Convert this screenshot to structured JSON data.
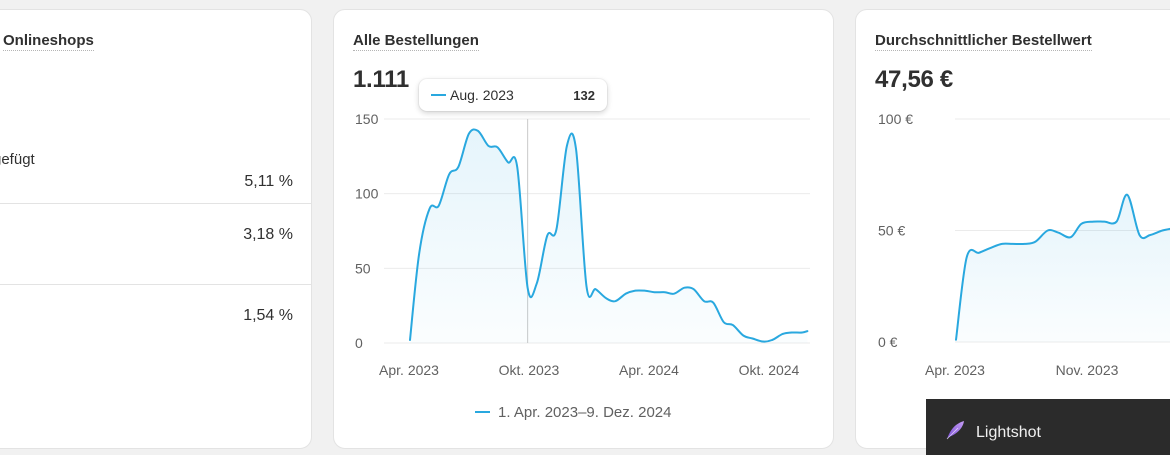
{
  "cards": {
    "online_stores": {
      "title": "Onlineshops",
      "rows": [
        {
          "label": "gefügt",
          "value": "5,11 %"
        },
        {
          "label": "",
          "value": "3,18 %"
        },
        {
          "label": "",
          "value": "1,54 %"
        }
      ]
    },
    "all_orders": {
      "title": "Alle Bestellungen",
      "value": "1.111",
      "tooltip": {
        "label": "Aug. 2023",
        "value": "132"
      },
      "legend": "1. Apr. 2023–9. Dez. 2024"
    },
    "avg_order_value": {
      "title": "Durchschnittlicher Bestellwert",
      "value": "47,56 €"
    }
  },
  "overlay": {
    "label": "Lightshot",
    "icon": "feather-icon"
  },
  "colors": {
    "accent": "#29a8df",
    "grid": "#ebebeb",
    "text": "#303030",
    "muted": "#616161"
  },
  "chart_data": [
    {
      "type": "line",
      "title": "Alle Bestellungen",
      "x_tick_labels": [
        "Apr. 2023",
        "Okt. 2023",
        "Apr. 2024",
        "Okt. 2024"
      ],
      "y_tick_labels": [
        "150",
        "100",
        "50",
        "0"
      ],
      "ylim": [
        0,
        150
      ],
      "series": [
        {
          "name": "1. Apr. 2023–9. Dez. 2024",
          "x": [
            "2023-04-01",
            "2023-04-15",
            "2023-05-01",
            "2023-05-15",
            "2023-06-01",
            "2023-06-15",
            "2023-07-01",
            "2023-07-15",
            "2023-08-01",
            "2023-08-15",
            "2023-09-01",
            "2023-09-15",
            "2023-10-01",
            "2023-10-15",
            "2023-11-01",
            "2023-11-15",
            "2023-12-01",
            "2023-12-15",
            "2024-01-01",
            "2024-01-15",
            "2024-02-01",
            "2024-02-15",
            "2024-03-01",
            "2024-03-15",
            "2024-04-01",
            "2024-04-15",
            "2024-05-01",
            "2024-05-15",
            "2024-06-01",
            "2024-06-15",
            "2024-07-01",
            "2024-07-15",
            "2024-08-01",
            "2024-08-15",
            "2024-09-01",
            "2024-09-15",
            "2024-10-01",
            "2024-10-15",
            "2024-11-01",
            "2024-11-15",
            "2024-12-01",
            "2024-12-09"
          ],
          "y": [
            2,
            60,
            90,
            92,
            113,
            118,
            140,
            142,
            132,
            131,
            121,
            118,
            37,
            40,
            72,
            76,
            132,
            130,
            38,
            36,
            30,
            28,
            33,
            35,
            35,
            34,
            34,
            33,
            37,
            36,
            28,
            27,
            14,
            12,
            5,
            3,
            1,
            2,
            6,
            7,
            7,
            8
          ]
        }
      ],
      "grid": true,
      "legend_position": "bottom",
      "highlight": {
        "x": "2023-10-01"
      }
    },
    {
      "type": "line",
      "title": "Durchschnittlicher Bestellwert",
      "x_tick_labels": [
        "Apr. 2023",
        "Nov. 2023"
      ],
      "y_tick_labels": [
        "100 €",
        "50 €",
        "0 €"
      ],
      "ylim": [
        0,
        100
      ],
      "series": [
        {
          "x": [
            "2023-04-01",
            "2023-04-15",
            "2023-05-01",
            "2023-05-15",
            "2023-06-01",
            "2023-06-15",
            "2023-07-01",
            "2023-07-15",
            "2023-08-01",
            "2023-08-15",
            "2023-09-01",
            "2023-09-15",
            "2023-10-01",
            "2023-10-15",
            "2023-11-01",
            "2023-11-15",
            "2023-12-01",
            "2023-12-15",
            "2024-01-01",
            "2024-01-15"
          ],
          "y": [
            1,
            38,
            40,
            42,
            44,
            44,
            44,
            45,
            50,
            49,
            47,
            53,
            54,
            54,
            54,
            66,
            48,
            48,
            50,
            51
          ]
        }
      ],
      "grid": true
    }
  ]
}
